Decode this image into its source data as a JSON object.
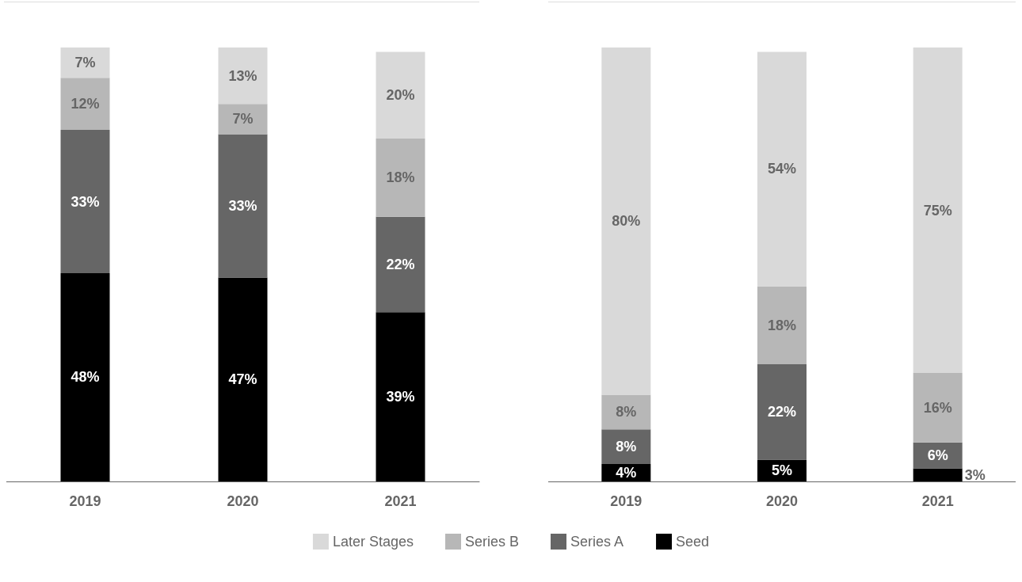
{
  "chart_data": [
    {
      "type": "bar",
      "stacked": true,
      "categories": [
        "2019",
        "2020",
        "2021"
      ],
      "tick_labels": "x",
      "legend": "bottom",
      "series": [
        {
          "name": "Seed",
          "color": "#000000",
          "values": [
            48,
            47,
            39
          ],
          "value_labels": [
            "48%",
            "47%",
            "39%"
          ]
        },
        {
          "name": "Series A",
          "color": "#666666",
          "values": [
            33,
            33,
            22
          ],
          "value_labels": [
            "33%",
            "33%",
            "22%"
          ]
        },
        {
          "name": "Series B",
          "color": "#b7b7b7",
          "values": [
            12,
            7,
            18
          ],
          "value_labels": [
            "12%",
            "7%",
            "18%"
          ]
        },
        {
          "name": "Later Stages",
          "color": "#d9d9d9",
          "values": [
            7,
            13,
            20
          ],
          "value_labels": [
            "7%",
            "13%",
            "20%"
          ]
        }
      ]
    },
    {
      "type": "bar",
      "stacked": true,
      "categories": [
        "2019",
        "2020",
        "2021"
      ],
      "tick_labels": "x",
      "series": [
        {
          "color": "#000000",
          "values": [
            4,
            5,
            3
          ],
          "value_labels": [
            "4%",
            "5%",
            "3%"
          ]
        },
        {
          "color": "#666666",
          "values": [
            8,
            22,
            6
          ],
          "value_labels": [
            "8%",
            "22%",
            "6%"
          ]
        },
        {
          "color": "#b7b7b7",
          "values": [
            8,
            18,
            16
          ],
          "value_labels": [
            "8%",
            "18%",
            "16%"
          ]
        },
        {
          "color": "#d9d9d9",
          "values": [
            80,
            54,
            75
          ],
          "value_labels": [
            "80%",
            "54%",
            "75%"
          ]
        }
      ]
    }
  ]
}
